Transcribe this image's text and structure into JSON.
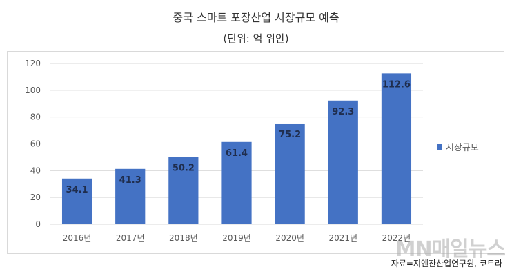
{
  "chart_data": {
    "type": "bar",
    "title": "중국 스마트 포장산업 시장규모 예측",
    "subtitle": "(단위: 억 위안)",
    "categories": [
      "2016년",
      "2017년",
      "2018년",
      "2019년",
      "2020년",
      "2021년",
      "2022년"
    ],
    "series": [
      {
        "name": "시장규모",
        "values": [
          34.1,
          41.3,
          50.2,
          61.4,
          75.2,
          92.3,
          112.6
        ]
      }
    ],
    "ylim": [
      0,
      120
    ],
    "yticks": [
      0,
      20,
      40,
      60,
      80,
      100,
      120
    ],
    "grid": true,
    "legend_position": "right",
    "bar_color": "#4472C4"
  },
  "source": "자료=지엔잔산업연구원, 코트라",
  "watermark": "MN매일뉴스"
}
